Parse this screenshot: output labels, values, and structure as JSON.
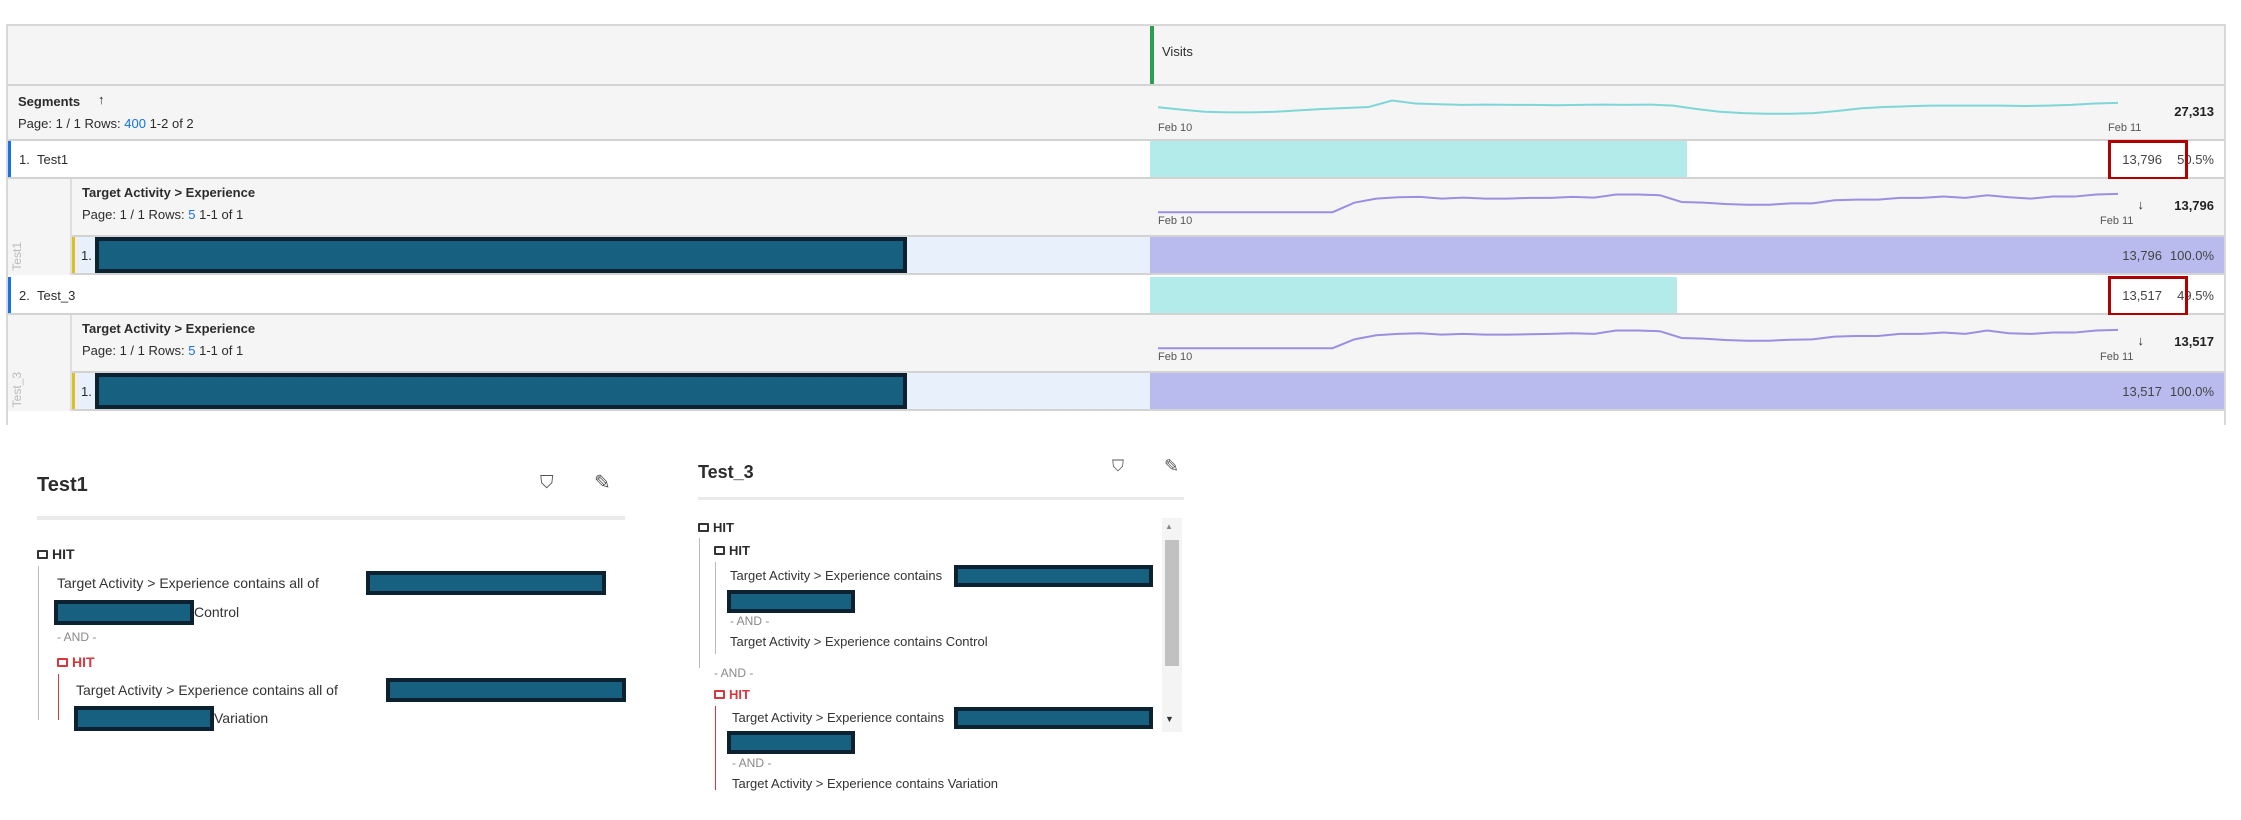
{
  "table": {
    "metric_header": "Visits",
    "dimension_header": "Segments",
    "sort_icon": "arrow-up-icon",
    "pagination": {
      "page_label": "Page: 1 / 1 Rows:",
      "rows": "400",
      "range": "1-2 of 2"
    },
    "total": "27,313",
    "date_start": "Feb 10",
    "date_end": "Feb 11",
    "colors": {
      "segment_bar": "#b2ebea",
      "breakdown_bar": "#b9bbee",
      "sparkline_total": "#7fd6d6",
      "sparkline_breakdown": "#9b8fe0",
      "highlight_box": "#b00000",
      "redaction": "#17607f"
    },
    "sparkline_total": [
      55,
      48,
      42,
      40,
      40,
      42,
      46,
      50,
      53,
      56,
      75,
      66,
      64,
      62,
      63,
      62,
      62,
      61,
      62,
      63,
      62,
      63,
      60,
      50,
      42,
      38,
      36,
      36,
      38,
      44,
      52,
      56,
      58,
      60,
      60,
      60,
      60,
      59,
      60,
      62,
      66,
      68
    ],
    "rows": [
      {
        "index": "1.",
        "label": "Test1",
        "value": "13,796",
        "percent": "50.5%",
        "share": 50.5,
        "breakdown": {
          "header": "Target Activity > Experience",
          "page_label": "Page: 1 / 1 Rows:",
          "rows": "5",
          "range": "1-1 of 1",
          "total": "13,796",
          "side_label": "Test1",
          "sparkline": [
            20,
            20,
            20,
            20,
            20,
            20,
            20,
            20,
            20,
            48,
            60,
            64,
            65,
            60,
            63,
            60,
            60,
            62,
            62,
            65,
            63,
            72,
            72,
            70,
            50,
            48,
            44,
            42,
            42,
            46,
            46,
            55,
            57,
            57,
            62,
            62,
            66,
            62,
            70,
            64,
            60,
            66,
            66,
            72,
            74
          ],
          "item": {
            "index": "1.",
            "value": "13,796",
            "percent": "100.0%",
            "share": 100
          }
        }
      },
      {
        "index": "2.",
        "label": "Test_3",
        "value": "13,517",
        "percent": "49.5%",
        "share": 49.5,
        "breakdown": {
          "header": "Target Activity > Experience",
          "page_label": "Page: 1 / 1 Rows:",
          "rows": "5",
          "range": "1-1 of 1",
          "total": "13,517",
          "side_label": "Test_3",
          "sparkline": [
            20,
            20,
            20,
            20,
            20,
            20,
            20,
            20,
            20,
            46,
            58,
            62,
            64,
            60,
            62,
            60,
            60,
            61,
            62,
            64,
            62,
            72,
            72,
            70,
            50,
            48,
            44,
            42,
            42,
            45,
            46,
            54,
            56,
            56,
            62,
            62,
            66,
            62,
            72,
            64,
            62,
            66,
            66,
            72,
            74
          ],
          "item": {
            "index": "1.",
            "value": "13,517",
            "percent": "100.0%",
            "share": 100
          }
        }
      }
    ]
  },
  "panels": [
    {
      "title": "Test1",
      "hit": "HIT",
      "line1": "Target Activity > Experience contains all of",
      "line2_suffix": "Control",
      "and": "- AND -",
      "hit2": "HIT",
      "line3": "Target Activity > Experience contains all of",
      "line4_suffix": "Variation"
    },
    {
      "title": "Test_3",
      "hit": "HIT",
      "hit_inner": "HIT",
      "line1": "Target Activity > Experience contains",
      "and1": "- AND -",
      "line2": "Target Activity > Experience contains Control",
      "and2": "- AND -",
      "hit2": "HIT",
      "line3": "Target Activity > Experience contains",
      "and3": "- AND -",
      "line4": "Target Activity > Experience contains Variation"
    }
  ]
}
